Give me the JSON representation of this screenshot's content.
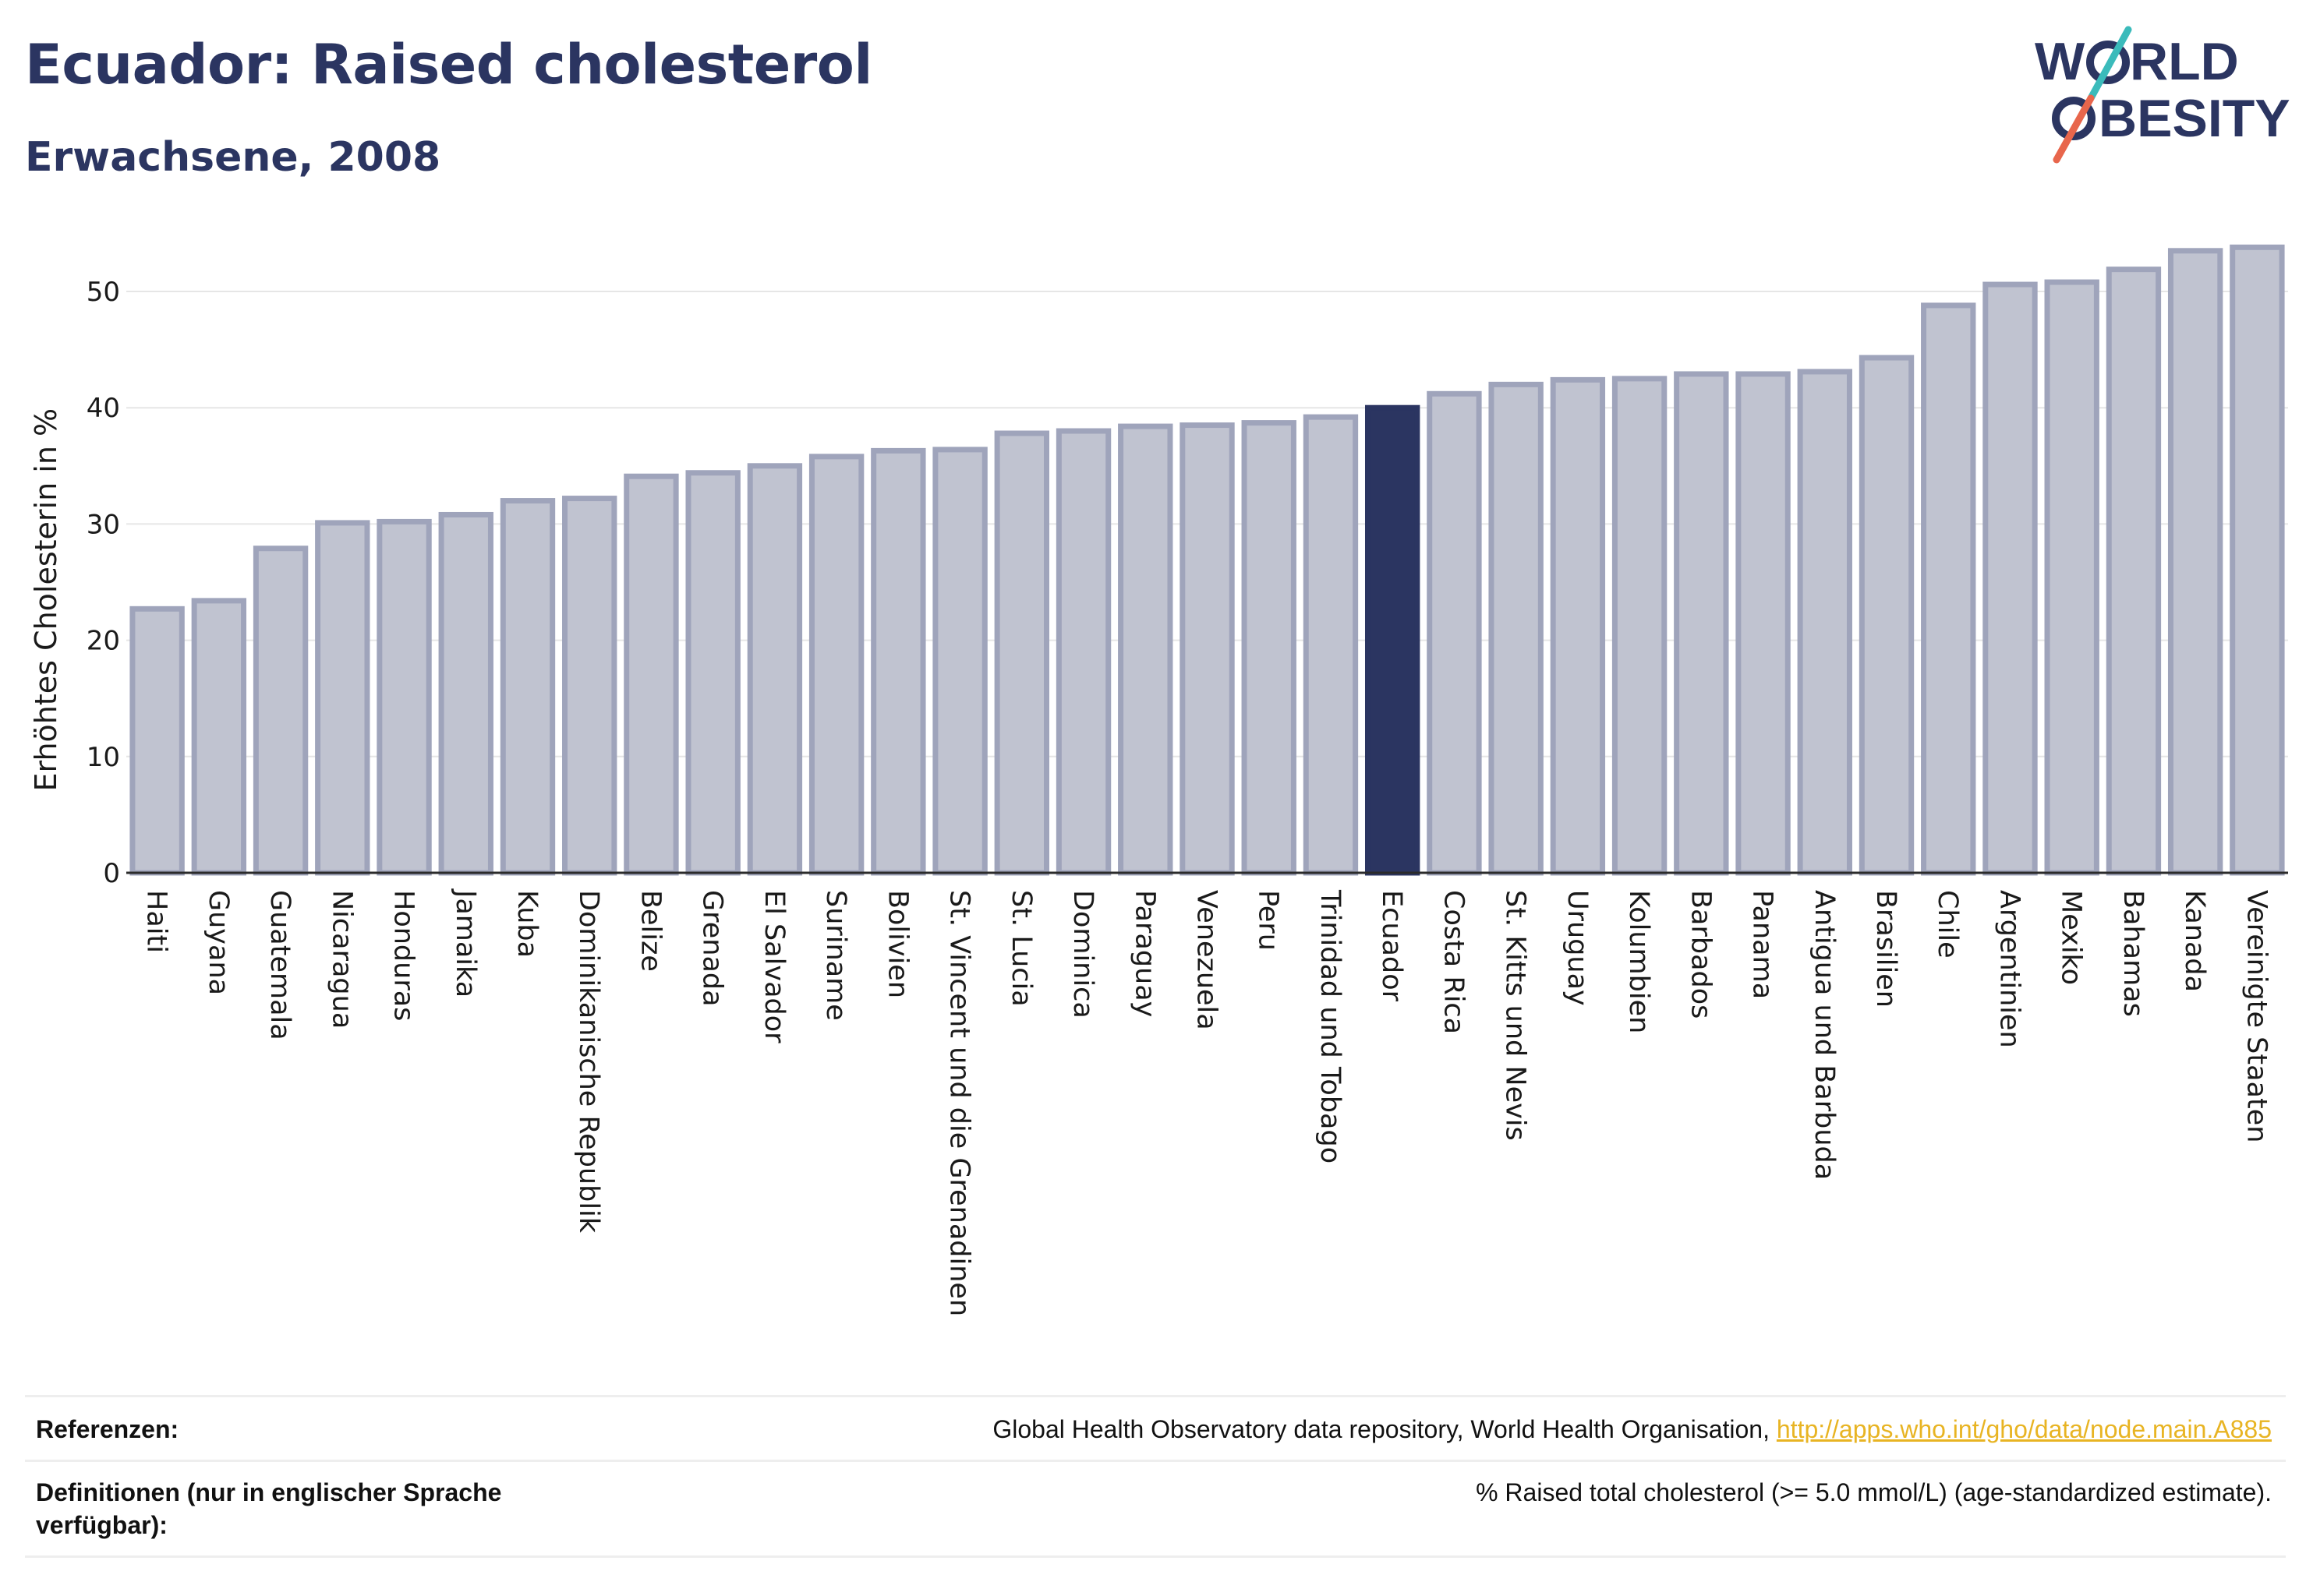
{
  "header": {
    "title": "Ecuador: Raised cholesterol",
    "subtitle": "Erwachsene, 2008"
  },
  "logo": {
    "line1_a": "W",
    "line1_b": "RLD",
    "line2_b": "BESITY",
    "text_color": "#2b3561",
    "slash_top_color": "#3bbbbb",
    "slash_bottom_color": "#e8664c"
  },
  "colors": {
    "highlight_bar": "#2b3561",
    "other_bar_fill": "#c0c3d0",
    "other_bar_stroke": "#9fa4bb"
  },
  "chart_data": {
    "type": "bar",
    "title": "",
    "xlabel": "",
    "ylabel": "Erhöhtes Cholesterin in %",
    "ylim": [
      0,
      55
    ],
    "yticks": [
      0,
      10,
      20,
      30,
      40,
      50
    ],
    "grid": true,
    "highlight": "Ecuador",
    "categories": [
      "Haiti",
      "Guyana",
      "Guatemala",
      "Nicaragua",
      "Honduras",
      "Jamaika",
      "Kuba",
      "Dominikanische Republik",
      "Belize",
      "Grenada",
      "El Salvador",
      "Suriname",
      "Bolivien",
      "St. Vincent und die Grenadinen",
      "St. Lucia",
      "Dominica",
      "Paraguay",
      "Venezuela",
      "Peru",
      "Trinidad und Tobago",
      "Ecuador",
      "Costa Rica",
      "St. Kitts und Nevis",
      "Uruguay",
      "Kolumbien",
      "Barbados",
      "Panama",
      "Antigua und Barbuda",
      "Brasilien",
      "Chile",
      "Argentinien",
      "Mexiko",
      "Bahamas",
      "Kanada",
      "Vereinigte Staaten"
    ],
    "values": [
      22.7,
      23.4,
      27.9,
      30.1,
      30.2,
      30.8,
      32.0,
      32.2,
      34.1,
      34.4,
      35.0,
      35.8,
      36.3,
      36.4,
      37.8,
      38.0,
      38.4,
      38.5,
      38.7,
      39.2,
      40.0,
      41.2,
      42.0,
      42.4,
      42.5,
      42.9,
      42.9,
      43.1,
      44.3,
      48.8,
      50.6,
      50.8,
      51.9,
      53.5,
      53.8
    ]
  },
  "footer": {
    "references_label": "Referenzen:",
    "references_text": "Global Health Observatory data repository, World Health Organisation, ",
    "references_link": "http://apps.who.int/gho/data/node.main.A885",
    "definitions_label": "Definitionen (nur in englischer Sprache verfügbar):",
    "definitions_text": "% Raised total cholesterol (>= 5.0 mmol/L) (age-standardized estimate)."
  }
}
